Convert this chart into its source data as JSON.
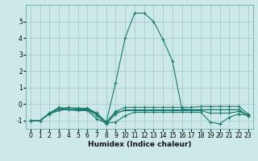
{
  "x": [
    0,
    1,
    2,
    3,
    4,
    5,
    6,
    7,
    8,
    9,
    10,
    11,
    12,
    13,
    14,
    15,
    16,
    17,
    18,
    19,
    20,
    21,
    22,
    23
  ],
  "lines": [
    [
      -1,
      -1,
      -0.6,
      -0.4,
      -0.3,
      -0.35,
      -0.35,
      -0.7,
      -1.2,
      -0.6,
      -0.35,
      -0.35,
      -0.35,
      -0.35,
      -0.35,
      -0.35,
      -0.35,
      -0.35,
      -0.35,
      -0.35,
      -0.35,
      -0.35,
      -0.35,
      -0.7
    ],
    [
      -1,
      -1,
      -0.6,
      -0.3,
      -0.35,
      -0.4,
      -0.4,
      -0.9,
      -1.15,
      -1.1,
      -0.7,
      -0.5,
      -0.5,
      -0.5,
      -0.5,
      -0.5,
      -0.5,
      -0.5,
      -0.5,
      -1.1,
      -1.2,
      -0.8,
      -0.6,
      -0.7
    ],
    [
      -1,
      -1,
      -0.55,
      -0.2,
      -0.3,
      -0.3,
      -0.3,
      -0.55,
      -1.1,
      1.3,
      4.0,
      5.5,
      5.5,
      5.0,
      3.9,
      2.6,
      -0.3,
      -0.35,
      -0.35,
      -0.35,
      -0.35,
      -0.35,
      -0.35,
      -0.7
    ],
    [
      -1,
      -1,
      -0.6,
      -0.3,
      -0.2,
      -0.25,
      -0.25,
      -0.55,
      -1.1,
      -0.45,
      -0.2,
      -0.2,
      -0.2,
      -0.2,
      -0.2,
      -0.2,
      -0.2,
      -0.2,
      -0.15,
      -0.15,
      -0.15,
      -0.15,
      -0.15,
      -0.6
    ],
    [
      -1,
      -1,
      -0.55,
      -0.3,
      -0.3,
      -0.35,
      -0.35,
      -0.6,
      -1.15,
      -0.5,
      -0.4,
      -0.4,
      -0.4,
      -0.4,
      -0.4,
      -0.4,
      -0.4,
      -0.4,
      -0.4,
      -0.55,
      -0.55,
      -0.55,
      -0.45,
      -0.65
    ]
  ],
  "color": "#1a7a6e",
  "bg_color": "#cce8e8",
  "grid_color": "#aacccc",
  "xlabel": "Humidex (Indice chaleur)",
  "ylim": [
    -1.5,
    6.0
  ],
  "xlim": [
    -0.5,
    23.5
  ],
  "yticks": [
    -1,
    0,
    1,
    2,
    3,
    4,
    5
  ],
  "xticks": [
    0,
    1,
    2,
    3,
    4,
    5,
    6,
    7,
    8,
    9,
    10,
    11,
    12,
    13,
    14,
    15,
    16,
    17,
    18,
    19,
    20,
    21,
    22,
    23
  ],
  "linewidth": 0.8,
  "markersize": 3.0,
  "tick_fontsize": 5.5,
  "xlabel_fontsize": 6.5
}
